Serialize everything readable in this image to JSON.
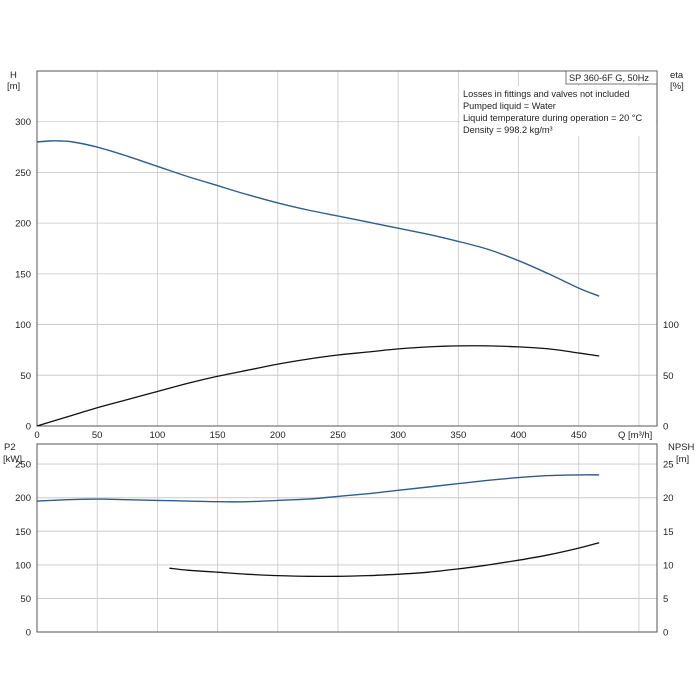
{
  "chart_data": [
    {
      "type": "line",
      "title": "SP 360-6F G, 50Hz",
      "annotations": [
        "Losses in fittings and valves not included",
        "Pumped liquid = Water",
        "Liquid temperature during operation = 20 °C",
        "Density = 998.2 kg/m³"
      ],
      "xlabel": "Q [m³/h]",
      "ylabel": [
        "H",
        "[m]"
      ],
      "y2label": [
        "eta",
        "[%]"
      ],
      "xlim": [
        0,
        515
      ],
      "ylim": [
        0,
        350
      ],
      "y2lim": [
        0,
        350
      ],
      "x_ticks": [
        "0",
        "50",
        "100",
        "150",
        "200",
        "250",
        "300",
        "350",
        "400",
        "450"
      ],
      "y_ticks": [
        "0",
        "50",
        "100",
        "150",
        "200",
        "250",
        "300"
      ],
      "y2_ticks": [
        "0",
        "50",
        "100"
      ],
      "grid": true,
      "series": [
        {
          "axis": "left",
          "color": "#2f5d8a",
          "x": [
            0,
            10,
            20,
            30,
            50,
            75,
            100,
            125,
            150,
            175,
            200,
            225,
            250,
            275,
            300,
            325,
            350,
            375,
            400,
            425,
            450,
            467
          ],
          "values": [
            280,
            281,
            281,
            280,
            275,
            266,
            256,
            246,
            237,
            228,
            220,
            213,
            207,
            201,
            195,
            189,
            182,
            174,
            163,
            150,
            136,
            128
          ]
        },
        {
          "axis": "right",
          "color": "#111111",
          "x": [
            0,
            25,
            50,
            75,
            100,
            125,
            150,
            175,
            200,
            225,
            250,
            275,
            300,
            325,
            350,
            375,
            400,
            425,
            450,
            467
          ],
          "values": [
            0,
            9,
            18,
            26,
            34,
            42,
            49,
            55,
            61,
            66,
            70,
            73,
            76,
            78,
            79,
            79,
            78,
            76,
            72,
            69
          ]
        }
      ]
    },
    {
      "type": "line",
      "xlim": [
        0,
        515
      ],
      "ylabel": [
        "P2",
        "[kW]"
      ],
      "y2label": [
        "NPSH",
        "[m]"
      ],
      "ylim": [
        0,
        280
      ],
      "y2lim": [
        0,
        28
      ],
      "y_ticks": [
        "0",
        "50",
        "100",
        "150",
        "200",
        "250"
      ],
      "y2_ticks": [
        "0",
        "5",
        "10",
        "15",
        "20",
        "25"
      ],
      "grid": true,
      "series": [
        {
          "axis": "left",
          "color": "#2f5d8a",
          "x": [
            0,
            25,
            50,
            75,
            100,
            125,
            150,
            175,
            200,
            225,
            250,
            275,
            300,
            325,
            350,
            375,
            400,
            425,
            450,
            467
          ],
          "values": [
            195,
            197,
            198,
            197,
            196,
            195,
            194,
            194,
            196,
            198,
            202,
            206,
            211,
            216,
            221,
            226,
            230,
            233,
            234,
            234
          ]
        },
        {
          "axis": "right",
          "color": "#111111",
          "x": [
            110,
            125,
            150,
            175,
            200,
            225,
            250,
            275,
            300,
            325,
            350,
            375,
            400,
            425,
            450,
            467
          ],
          "values": [
            9.5,
            9.2,
            8.9,
            8.6,
            8.4,
            8.3,
            8.3,
            8.4,
            8.6,
            8.9,
            9.4,
            10.0,
            10.7,
            11.5,
            12.5,
            13.3
          ]
        }
      ]
    }
  ]
}
